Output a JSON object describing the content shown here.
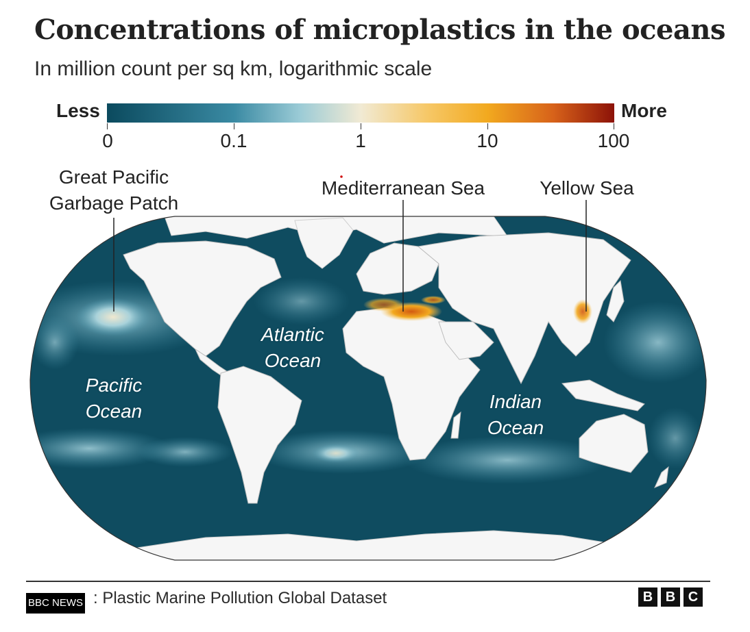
{
  "title": "Concentrations of microplastics in the oceans",
  "subtitle": "In million count per sq km, logarithmic scale",
  "legend": {
    "less_label": "Less",
    "more_label": "More",
    "scale": "logarithmic",
    "ticks": [
      {
        "label": "0"
      },
      {
        "label": "0.1"
      },
      {
        "label": "1"
      },
      {
        "label": "10"
      },
      {
        "label": "100"
      }
    ],
    "colors": [
      "#0b4a5e",
      "#2f7f97",
      "#7fbfd0",
      "#f2ecd8",
      "#f7c15a",
      "#f2a91f",
      "#d25a10",
      "#8c1208"
    ]
  },
  "callouts": [
    {
      "id": "gpgp",
      "lines": [
        "Great Pacific",
        "Garbage Patch"
      ]
    },
    {
      "id": "med",
      "lines": [
        "Mediterranean Sea"
      ]
    },
    {
      "id": "yellow",
      "lines": [
        "Yellow Sea"
      ]
    }
  ],
  "oceans": [
    {
      "id": "atlantic",
      "lines": [
        "Atlantic",
        "Ocean"
      ]
    },
    {
      "id": "pacific",
      "lines": [
        "Pacific",
        "Ocean"
      ]
    },
    {
      "id": "indian",
      "lines": [
        "Indian",
        "Ocean"
      ]
    }
  ],
  "map": {
    "projection": "robinson-style world map",
    "ocean_color": "#0f4c60",
    "land_color": "#f6f6f6",
    "hotspots": [
      "Great Pacific Garbage Patch",
      "Mediterranean Sea",
      "Yellow Sea"
    ]
  },
  "footer": {
    "source_text": ": Plastic Marine Pollution Global Dataset",
    "badge": "BBC NEWS",
    "logo_letters": [
      "B",
      "B",
      "C"
    ]
  }
}
